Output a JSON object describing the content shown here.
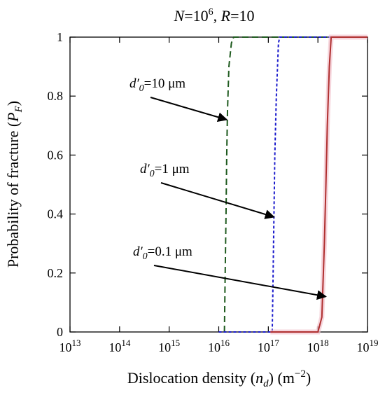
{
  "chart_data": {
    "type": "line",
    "title": {
      "N_base": "10",
      "N_exp": "6",
      "R": "10"
    },
    "xlabel": {
      "pre": "Dislocation density (",
      "var": "n",
      "sub": "d",
      "mid": ") (m",
      "sup": "−2",
      "post": ")"
    },
    "ylabel": {
      "pre": "Probability of fracture (",
      "var": "P",
      "sub": "F",
      "post": ")"
    },
    "x_scale": "log",
    "xlim": [
      10000000000000.0,
      1e+19
    ],
    "ylim": [
      0,
      1
    ],
    "grid": false,
    "x_ticks": [
      {
        "value": 10000000000000.0,
        "base": "10",
        "exp": "13"
      },
      {
        "value": 100000000000000.0,
        "base": "10",
        "exp": "14"
      },
      {
        "value": 1000000000000000.0,
        "base": "10",
        "exp": "15"
      },
      {
        "value": 1e+16,
        "base": "10",
        "exp": "16"
      },
      {
        "value": 1e+17,
        "base": "10",
        "exp": "17"
      },
      {
        "value": 1e+18,
        "base": "10",
        "exp": "18"
      },
      {
        "value": 1e+19,
        "base": "10",
        "exp": "19"
      }
    ],
    "y_ticks": [
      {
        "value": 0,
        "label": "0"
      },
      {
        "value": 0.2,
        "label": "0.2"
      },
      {
        "value": 0.4,
        "label": "0.4"
      },
      {
        "value": 0.6,
        "label": "0.6"
      },
      {
        "value": 0.8,
        "label": "0.8"
      },
      {
        "value": 1,
        "label": "1"
      }
    ],
    "series": [
      {
        "label_value": "10 μm",
        "color": "#1e5a1e",
        "dash": "dashed",
        "points": [
          [
            1.3e+16,
            0.0
          ],
          [
            1.35e+16,
            0.2
          ],
          [
            1.4e+16,
            0.4
          ],
          [
            1.45e+16,
            0.6
          ],
          [
            1.5e+16,
            0.75
          ],
          [
            1.6e+16,
            0.9
          ],
          [
            1.8e+16,
            0.98
          ],
          [
            2e+16,
            1.0
          ],
          [
            1e+19,
            1.0
          ]
        ]
      },
      {
        "label_value": "1 μm",
        "color": "#1a1acc",
        "dash": "dotted",
        "points": [
          [
            1e+16,
            0.0
          ],
          [
            1.2e+17,
            0.0
          ],
          [
            1.25e+17,
            0.2
          ],
          [
            1.3e+17,
            0.4
          ],
          [
            1.35e+17,
            0.6
          ],
          [
            1.45e+17,
            0.8
          ],
          [
            1.6e+17,
            0.98
          ],
          [
            1.7e+17,
            1.0
          ],
          [
            1e+19,
            1.0
          ]
        ]
      },
      {
        "label_value": "0.1 μm",
        "color": "#b03030",
        "dash": "solid",
        "points": [
          [
            1.1e+17,
            0.0
          ],
          [
            1e+18,
            0.0
          ],
          [
            1.2e+18,
            0.05
          ],
          [
            1.35e+18,
            0.3
          ],
          [
            1.45e+18,
            0.5
          ],
          [
            1.55e+18,
            0.7
          ],
          [
            1.7e+18,
            0.9
          ],
          [
            1.85e+18,
            1.0
          ],
          [
            1e+19,
            1.0
          ]
        ]
      }
    ],
    "annotations": [
      {
        "series": 0,
        "var": "d′",
        "sub": "0",
        "text": "=10 μm",
        "target": [
          1.45e+16,
          0.72
        ]
      },
      {
        "series": 1,
        "var": "d′",
        "sub": "0",
        "text": "=1 μm",
        "target": [
          1.3e+17,
          0.39
        ]
      },
      {
        "series": 2,
        "var": "d′",
        "sub": "0",
        "text": "=0.1 μm",
        "target": [
          1.45e+18,
          0.12
        ]
      }
    ]
  }
}
